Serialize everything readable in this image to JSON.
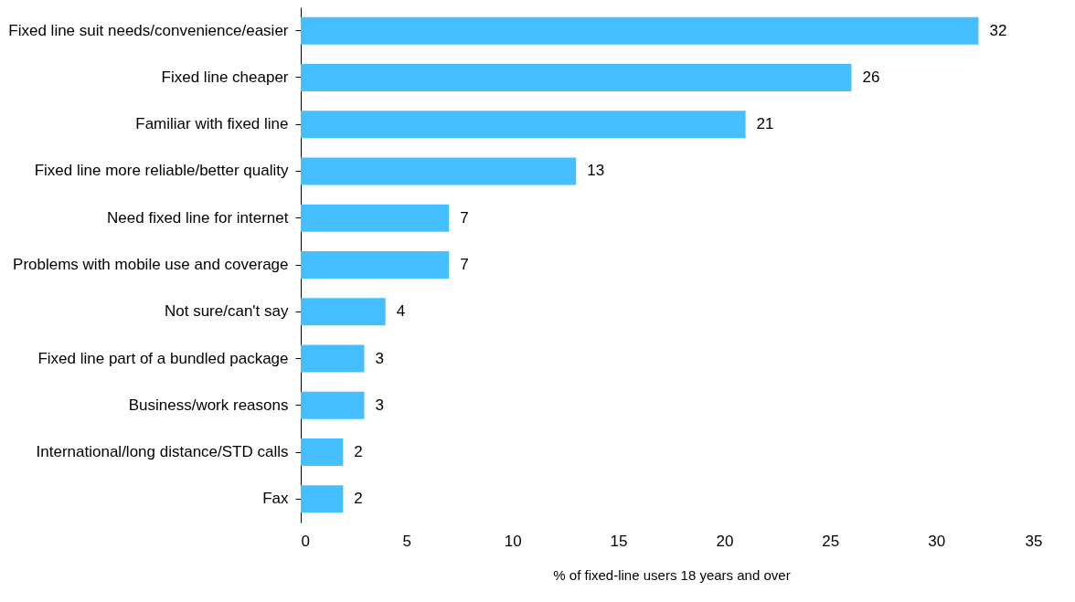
{
  "chart_data": {
    "type": "bar",
    "orientation": "horizontal",
    "categories": [
      "Fixed line suit needs/convenience/easier",
      "Fixed line cheaper",
      "Familiar with fixed line",
      "Fixed line more reliable/better quality",
      "Need fixed line for internet",
      "Problems with mobile use and coverage",
      "Not sure/can't say",
      "Fixed line part of a bundled package",
      "Business/work reasons",
      "International/long distance/STD calls",
      "Fax"
    ],
    "values": [
      32,
      26,
      21,
      13,
      7,
      7,
      4,
      3,
      3,
      2,
      2
    ],
    "color": "#45bfff",
    "xlim": [
      0,
      35
    ],
    "xticks": [
      0,
      5,
      10,
      15,
      20,
      25,
      30,
      35
    ],
    "xlabel": "% of fixed-line users 18 years and over",
    "data_labels": true,
    "grid": false
  }
}
